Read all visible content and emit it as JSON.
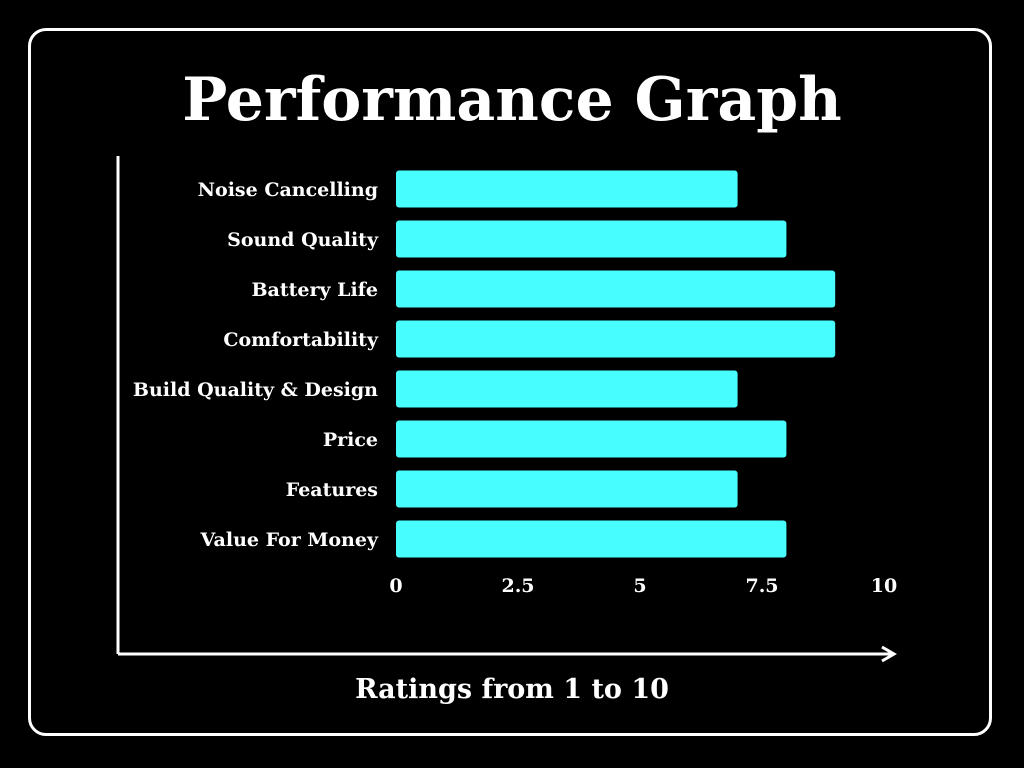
{
  "colors": {
    "background": "#000000",
    "foreground": "#ffffff",
    "bar": "#48fdfe"
  },
  "chart_data": {
    "type": "bar",
    "orientation": "horizontal",
    "title": "Performance Graph",
    "xlabel": "Ratings from 1 to 10",
    "ylabel": "",
    "categories": [
      "Noise Cancelling",
      "Sound Quality",
      "Battery Life",
      "Comfortability",
      "Build Quality & Design",
      "Price",
      "Features",
      "Value For Money"
    ],
    "values": [
      7,
      8,
      9,
      9,
      7,
      8,
      7,
      8
    ],
    "xlim": [
      0,
      10
    ],
    "xticks": [
      "0",
      "2.5",
      "5",
      "7.5",
      "10"
    ],
    "grid": false,
    "legend": "none"
  }
}
